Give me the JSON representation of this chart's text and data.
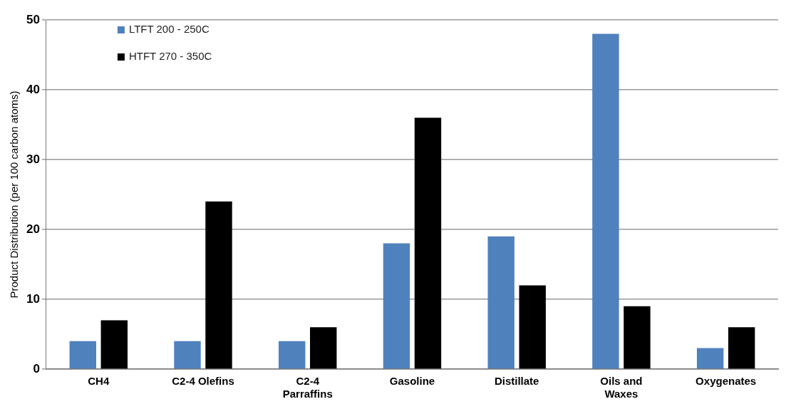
{
  "chart_data": {
    "type": "bar",
    "ylabel": "Product Distribution (per 100 carbon atoms)",
    "categories": [
      "CH4",
      "C2-4 Olefins",
      "C2-4 Parraffins",
      "Gasoline",
      "Distillate",
      "Oils and Waxes",
      "Oxygenates"
    ],
    "series": [
      {
        "name": "LTFT 200 - 250C",
        "color": "#4f81bd",
        "values": [
          4,
          4,
          4,
          18,
          19,
          48,
          3
        ]
      },
      {
        "name": "HTFT 270 - 350C",
        "color": "#000000",
        "values": [
          7,
          24,
          6,
          36,
          12,
          9,
          6
        ]
      }
    ],
    "ylim": [
      0,
      50
    ],
    "yticks": [
      0,
      10,
      20,
      30,
      40,
      50
    ],
    "grid": "y",
    "legend": "top left"
  }
}
